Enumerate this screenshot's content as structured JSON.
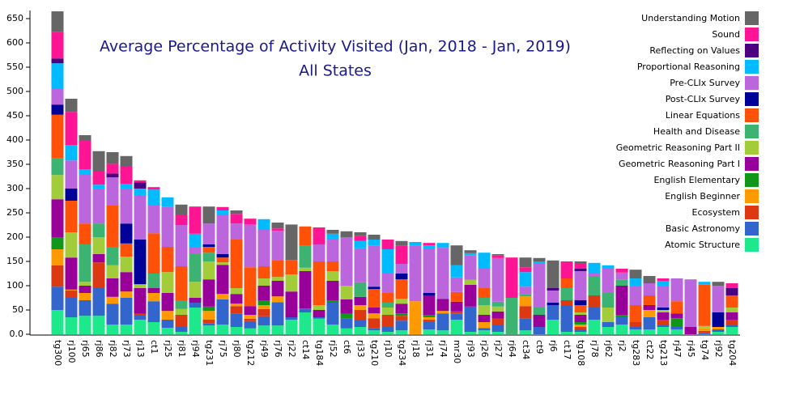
{
  "chart_data": {
    "type": "stacked_bar",
    "title": "Average Percentage of Activity Visited (Jan, 2018 - Jan, 2019)",
    "subtitle": "All States",
    "categories": [
      "tg300",
      "rj100",
      "rj65",
      "rj86",
      "rj82",
      "rj73",
      "rj13",
      "ct1",
      "rj25",
      "rj81",
      "rj94",
      "tg231",
      "rj75",
      "rj80",
      "tg212",
      "rj49",
      "rj76",
      "rj22",
      "ct14",
      "tg184",
      "rj52",
      "ct6",
      "rj33",
      "tg210",
      "rj10",
      "tg234",
      "rj18",
      "rj31",
      "rj74",
      "mr30",
      "rj93",
      "rj26",
      "rj27",
      "rj64",
      "ct34",
      "ct9",
      "rj6",
      "ct17",
      "tg108",
      "rj78",
      "rj62",
      "rj2",
      "tg283",
      "ct22",
      "tg213",
      "rj47",
      "rj45",
      "tg74",
      "rj92",
      "tg204"
    ],
    "series": [
      {
        "name": "Atomic Structure",
        "color": "#1ee88c",
        "values": [
          50,
          35,
          38,
          38,
          20,
          20,
          30,
          25,
          13,
          5,
          55,
          18,
          20,
          15,
          12,
          18,
          18,
          30,
          45,
          32,
          20,
          12,
          15,
          8,
          5,
          8,
          0,
          10,
          8,
          30,
          5,
          8,
          5,
          0,
          8,
          0,
          30,
          5,
          5,
          30,
          15,
          20,
          10,
          10,
          15,
          10,
          0,
          0,
          5,
          15
        ]
      },
      {
        "name": "Basic Astronomy",
        "color": "#3366cc",
        "values": [
          48,
          40,
          32,
          57,
          43,
          55,
          10,
          43,
          17,
          10,
          10,
          5,
          52,
          28,
          15,
          19,
          48,
          5,
          8,
          3,
          45,
          20,
          15,
          5,
          10,
          20,
          0,
          15,
          35,
          12,
          52,
          5,
          15,
          0,
          25,
          15,
          30,
          55,
          5,
          25,
          10,
          15,
          5,
          25,
          5,
          5,
          0,
          2,
          5,
          5
        ]
      },
      {
        "name": "Ecosystem",
        "color": "#dc3912",
        "values": [
          44,
          15,
          0,
          53,
          0,
          0,
          2,
          0,
          0,
          25,
          0,
          7,
          0,
          15,
          5,
          15,
          0,
          0,
          0,
          0,
          0,
          0,
          20,
          20,
          25,
          10,
          0,
          5,
          0,
          5,
          0,
          0,
          12,
          0,
          25,
          0,
          0,
          10,
          5,
          25,
          0,
          0,
          10,
          0,
          10,
          0,
          0,
          5,
          0,
          10
        ]
      },
      {
        "name": "English Beginner",
        "color": "#ff9900",
        "values": [
          33,
          2,
          15,
          0,
          14,
          13,
          0,
          17,
          18,
          0,
          0,
          18,
          11,
          5,
          8,
          8,
          12,
          0,
          0,
          0,
          0,
          0,
          10,
          10,
          0,
          0,
          68,
          5,
          5,
          0,
          0,
          12,
          0,
          0,
          20,
          0,
          0,
          0,
          5,
          0,
          0,
          0,
          0,
          15,
          0,
          0,
          0,
          5,
          5,
          0
        ]
      },
      {
        "name": "English Elementary",
        "color": "#109618",
        "values": [
          25,
          0,
          0,
          0,
          0,
          0,
          0,
          0,
          0,
          0,
          0,
          9,
          0,
          0,
          0,
          10,
          0,
          0,
          0,
          0,
          5,
          10,
          0,
          0,
          0,
          5,
          0,
          5,
          0,
          0,
          0,
          0,
          0,
          0,
          0,
          0,
          0,
          0,
          5,
          0,
          0,
          5,
          0,
          0,
          0,
          18,
          0,
          0,
          0,
          0
        ]
      },
      {
        "name": "Geometric Reasoning Part I",
        "color": "#990099",
        "values": [
          78,
          66,
          15,
          17,
          38,
          40,
          53,
          10,
          37,
          0,
          10,
          56,
          60,
          20,
          18,
          30,
          32,
          53,
          77,
          15,
          40,
          30,
          17,
          12,
          0,
          20,
          0,
          40,
          25,
          20,
          45,
          15,
          15,
          0,
          0,
          25,
          0,
          0,
          15,
          0,
          0,
          60,
          0,
          10,
          15,
          10,
          15,
          0,
          0,
          15
        ]
      },
      {
        "name": "Geometric Reasoning Part II",
        "color": "#a3cc3a",
        "values": [
          50,
          52,
          8,
          35,
          27,
          32,
          8,
          0,
          43,
          12,
          33,
          37,
          5,
          12,
          0,
          15,
          8,
          35,
          7,
          10,
          20,
          28,
          0,
          0,
          15,
          10,
          0,
          0,
          0,
          0,
          10,
          20,
          10,
          0,
          0,
          0,
          0,
          0,
          5,
          0,
          30,
          0,
          0,
          0,
          5,
          0,
          0,
          5,
          0,
          10
        ]
      },
      {
        "name": "Health and Disease",
        "color": "#3cb371",
        "values": [
          34,
          0,
          77,
          28,
          38,
          0,
          0,
          30,
          0,
          18,
          57,
          18,
          0,
          0,
          0,
          0,
          0,
          0,
          45,
          0,
          0,
          0,
          30,
          0,
          10,
          0,
          0,
          0,
          0,
          0,
          0,
          15,
          10,
          75,
          5,
          15,
          0,
          25,
          0,
          40,
          30,
          12,
          0,
          0,
          0,
          0,
          0,
          0,
          0,
          0
        ]
      },
      {
        "name": "Linear Equations",
        "color": "#ff5108",
        "values": [
          90,
          65,
          43,
          0,
          85,
          27,
          0,
          83,
          52,
          70,
          0,
          12,
          10,
          100,
          80,
          25,
          35,
          30,
          40,
          90,
          20,
          0,
          0,
          38,
          20,
          40,
          0,
          0,
          0,
          20,
          0,
          20,
          0,
          0,
          0,
          0,
          0,
          20,
          15,
          0,
          0,
          0,
          35,
          20,
          0,
          25,
          0,
          85,
          0,
          25
        ]
      },
      {
        "name": "Post-CLIx Survey",
        "color": "#000099",
        "values": [
          21,
          25,
          0,
          0,
          0,
          41,
          92,
          0,
          0,
          0,
          0,
          5,
          7,
          0,
          0,
          0,
          0,
          0,
          0,
          0,
          0,
          0,
          0,
          5,
          0,
          12,
          0,
          5,
          0,
          0,
          0,
          0,
          0,
          0,
          0,
          0,
          5,
          0,
          10,
          0,
          0,
          0,
          0,
          0,
          5,
          0,
          0,
          0,
          30,
          0
        ]
      },
      {
        "name": "Pre-CLIx Survey",
        "color": "#bb66dd",
        "values": [
          32,
          58,
          102,
          72,
          58,
          72,
          90,
          57,
          82,
          85,
          15,
          43,
          80,
          33,
          88,
          75,
          60,
          0,
          0,
          35,
          45,
          100,
          70,
          85,
          40,
          20,
          115,
          90,
          105,
          30,
          50,
          40,
          90,
          0,
          15,
          90,
          25,
          0,
          60,
          5,
          50,
          15,
          40,
          25,
          45,
          47,
          98,
          0,
          55,
          0
        ]
      },
      {
        "name": "Proportional Reasoning",
        "color": "#00bbff",
        "values": [
          53,
          32,
          10,
          8,
          0,
          10,
          15,
          33,
          20,
          0,
          27,
          0,
          10,
          0,
          0,
          22,
          0,
          0,
          0,
          0,
          12,
          0,
          15,
          12,
          50,
          0,
          7,
          8,
          10,
          25,
          5,
          33,
          0,
          0,
          30,
          5,
          0,
          0,
          0,
          22,
          7,
          0,
          15,
          0,
          10,
          0,
          0,
          6,
          0,
          0
        ]
      },
      {
        "name": "Reflecting on Values",
        "color": "#4b0082",
        "values": [
          10,
          0,
          0,
          0,
          8,
          0,
          13,
          0,
          0,
          0,
          0,
          0,
          0,
          0,
          0,
          0,
          0,
          0,
          0,
          0,
          0,
          0,
          0,
          0,
          0,
          0,
          0,
          0,
          0,
          0,
          0,
          0,
          0,
          0,
          0,
          0,
          5,
          0,
          5,
          0,
          0,
          0,
          0,
          0,
          0,
          0,
          0,
          0,
          0,
          15
        ]
      },
      {
        "name": "Sound",
        "color": "#ff1493",
        "values": [
          54,
          68,
          60,
          27,
          20,
          35,
          4,
          5,
          0,
          20,
          56,
          0,
          7,
          20,
          12,
          0,
          5,
          0,
          0,
          35,
          0,
          0,
          10,
          0,
          20,
          37,
          0,
          5,
          0,
          0,
          0,
          0,
          5,
          83,
          10,
          0,
          0,
          35,
          10,
          0,
          0,
          8,
          0,
          0,
          5,
          0,
          0,
          0,
          0,
          10
        ]
      },
      {
        "name": "Understanding Motion",
        "color": "#666666",
        "values": [
          43,
          27,
          10,
          42,
          24,
          22,
          0,
          0,
          0,
          22,
          0,
          35,
          0,
          7,
          0,
          0,
          12,
          73,
          0,
          0,
          8,
          12,
          8,
          10,
          0,
          10,
          0,
          0,
          0,
          41,
          6,
          0,
          3,
          0,
          20,
          7,
          57,
          0,
          5,
          0,
          0,
          0,
          18,
          15,
          0,
          0,
          0,
          0,
          8,
          0
        ]
      }
    ],
    "ylim": [
      0,
      665
    ],
    "yticks": [
      {
        "value": 0,
        "label": "0.0"
      },
      50,
      100,
      150,
      200,
      250,
      300,
      350,
      400,
      450,
      500,
      550,
      600,
      650
    ],
    "grid": false,
    "legend": "right"
  }
}
